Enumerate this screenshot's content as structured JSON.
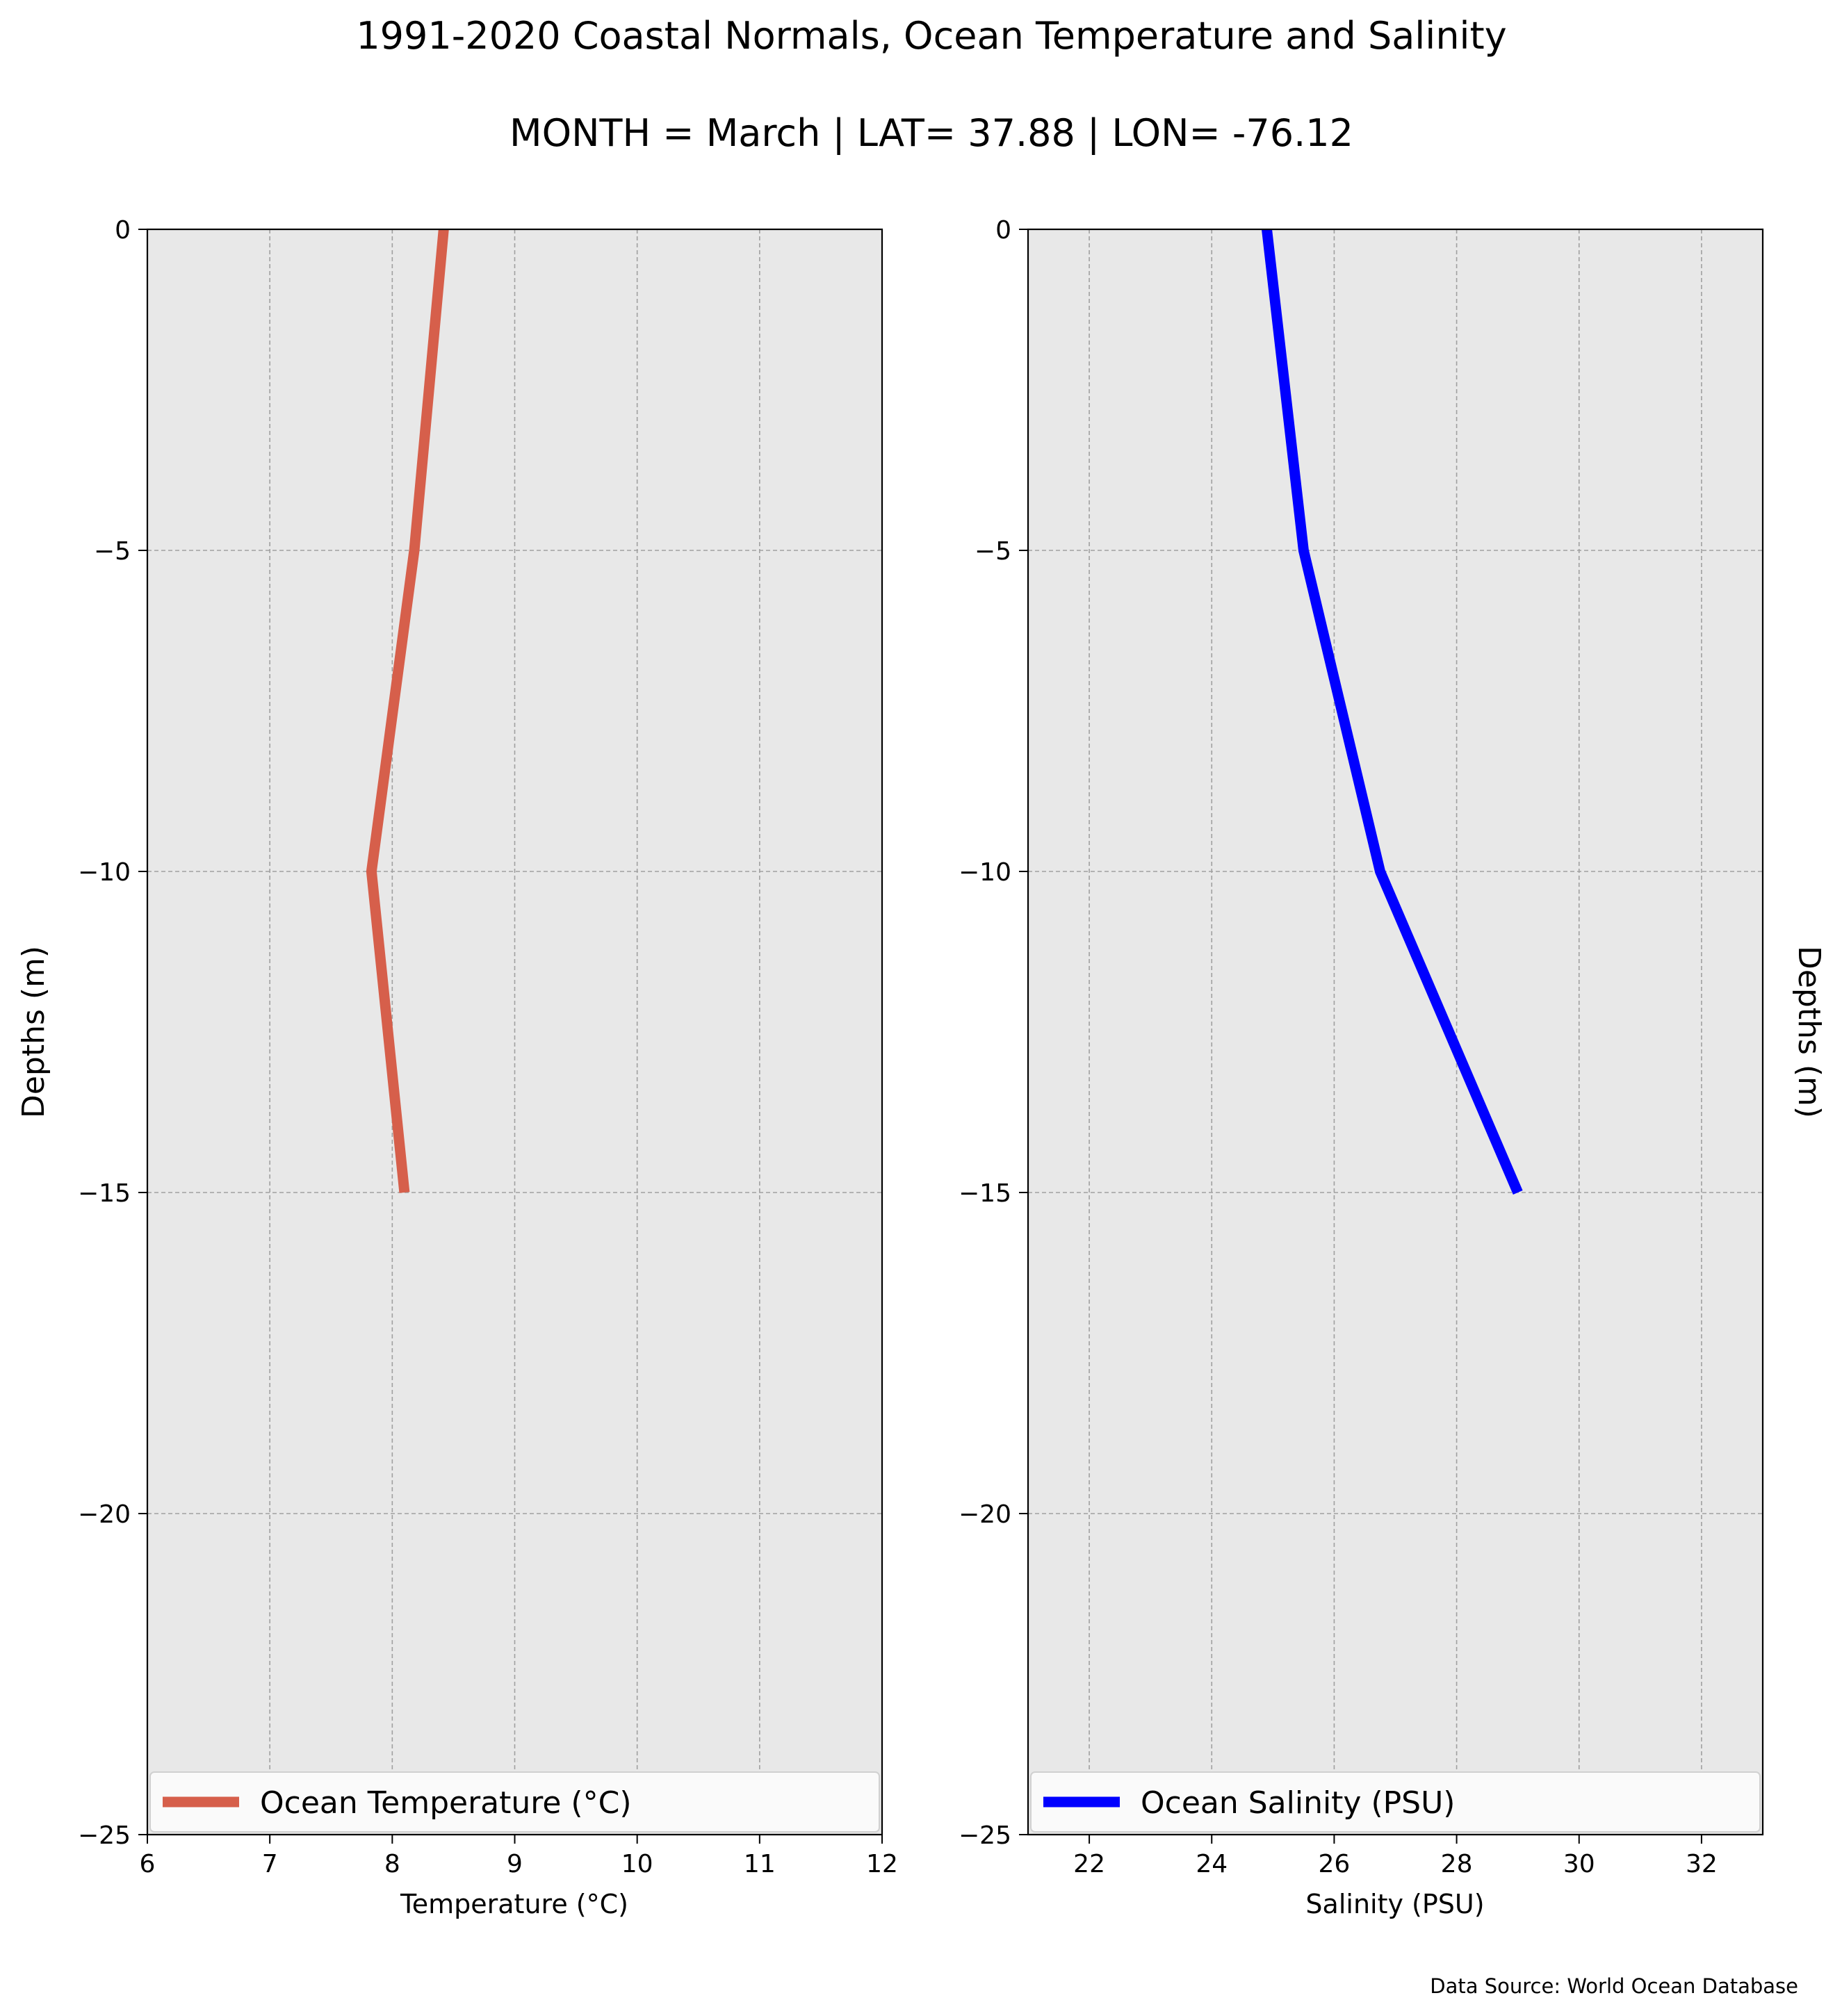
{
  "figure": {
    "title": "1991-2020 Coastal Normals, Ocean Temperature and Salinity",
    "subtitle": "MONTH = March | LAT= 37.88 | LON= -76.12",
    "source": "Data Source: World Ocean Database"
  },
  "chart_data": [
    {
      "type": "line",
      "xlabel": "Temperature ($^\\circ$C)",
      "xlabel_display": "Temperature (°C)",
      "ylabel": "Depths (m)",
      "xlim": [
        6,
        12
      ],
      "ylim": [
        -25,
        0
      ],
      "xticks": [
        6,
        7,
        8,
        9,
        10,
        11,
        12
      ],
      "yticks": [
        0,
        -5,
        -10,
        -15,
        -20,
        -25
      ],
      "grid": true,
      "legend_position": "lower center",
      "series": [
        {
          "name": "Ocean Temperature (°C)",
          "color": "#d65f4b",
          "x": [
            8.42,
            8.18,
            7.83,
            8.1
          ],
          "y": [
            0,
            -5,
            -10,
            -15
          ]
        }
      ]
    },
    {
      "type": "line",
      "xlabel": "Salinity (PSU)",
      "ylabel": "Depths (m)",
      "xlim": [
        21,
        33
      ],
      "ylim": [
        -25,
        0
      ],
      "xticks": [
        22,
        24,
        26,
        28,
        30,
        32
      ],
      "yticks": [
        0,
        -5,
        -10,
        -15,
        -20,
        -25
      ],
      "grid": true,
      "legend_position": "lower center",
      "series": [
        {
          "name": "Ocean Salinity (PSU)",
          "color": "#0000ff",
          "x": [
            24.9,
            25.5,
            26.75,
            29.0
          ],
          "y": [
            0,
            -5,
            -10,
            -15
          ]
        }
      ]
    }
  ]
}
